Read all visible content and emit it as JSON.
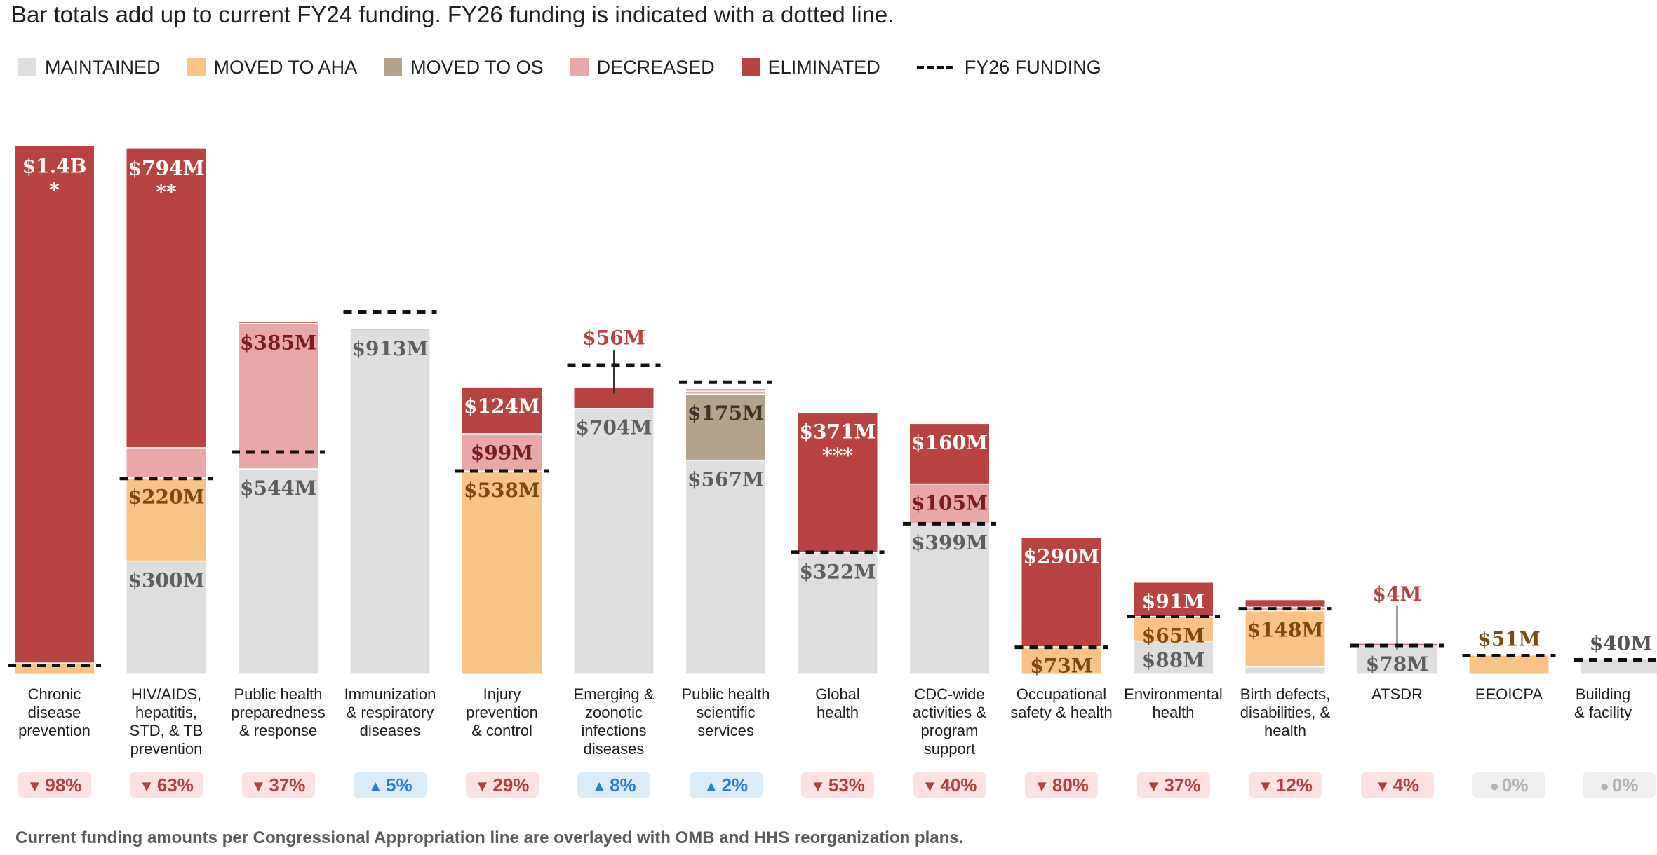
{
  "subtitle": "Bar totals add up to current FY24 funding. FY26 funding is indicated with a dotted line.",
  "footnote": "Current funding amounts per Congressional Appropriation line are overlayed with OMB and HHS reorganization plans.",
  "legend": [
    {
      "label": "MAINTAINED",
      "color": "#dedede"
    },
    {
      "label": "MOVED TO AHA",
      "color": "#f9c386"
    },
    {
      "label": "MOVED TO OS",
      "color": "#b3a389"
    },
    {
      "label": "DECREASED",
      "color": "#e9a8a8"
    },
    {
      "label": "ELIMINATED",
      "color": "#b84341"
    },
    {
      "label": "FY26 FUNDING",
      "style": "dashed"
    }
  ],
  "colors": {
    "MAINTAINED": "#dedede",
    "MOVED TO AHA": "#f9c386",
    "MOVED TO OS": "#b3a389",
    "DECREASED": "#e9a8a8",
    "ELIMINATED": "#b84341"
  },
  "chart_data": {
    "type": "bar",
    "stacked": true,
    "title": "Bar totals add up to current FY24 funding. FY26 funding is indicated with a dotted line.",
    "unit": "$M",
    "ylim": [
      0,
      1450
    ],
    "categories": [
      {
        "name": "Chronic disease prevention",
        "label_lines": [
          "Chronic",
          "disease",
          "prevention"
        ],
        "fy26": 25,
        "change": {
          "dir": "down",
          "text": "98%"
        },
        "top_label": {
          "text": "$1.4B",
          "note": "*",
          "color": "#ffffff",
          "inside": true
        },
        "segments": [
          {
            "type": "MOVED TO AHA",
            "value": 30
          },
          {
            "type": "ELIMINATED",
            "value": 1370
          }
        ]
      },
      {
        "name": "HIV/AIDS, hepatitis, STD, & TB prevention",
        "label_lines": [
          "HIV/AIDS,",
          "hepatitis,",
          "STD, & TB",
          "prevention"
        ],
        "fy26": 520,
        "change": {
          "dir": "down",
          "text": "63%"
        },
        "top_label": {
          "text": "$794M",
          "note": "**",
          "color": "#ffffff",
          "inside": true
        },
        "segments": [
          {
            "type": "MAINTAINED",
            "value": 300,
            "label": "$300M"
          },
          {
            "type": "MOVED TO AHA",
            "value": 220,
            "label": "$220M"
          },
          {
            "type": "DECREASED",
            "value": 80
          },
          {
            "type": "ELIMINATED",
            "value": 794
          }
        ]
      },
      {
        "name": "Public health preparedness & response",
        "label_lines": [
          "Public health",
          "preparedness",
          "& response"
        ],
        "fy26": 590,
        "change": {
          "dir": "down",
          "text": "37%"
        },
        "segments": [
          {
            "type": "MAINTAINED",
            "value": 544,
            "label": "$544M"
          },
          {
            "type": "DECREASED",
            "value": 385,
            "label": "$385M"
          },
          {
            "type": "ELIMINATED",
            "value": 6
          }
        ]
      },
      {
        "name": "Immunization & respiratory diseases",
        "label_lines": [
          "Immunization",
          "& respiratory",
          "diseases"
        ],
        "fy26": 960,
        "change": {
          "dir": "up",
          "text": "5%"
        },
        "segments": [
          {
            "type": "MAINTAINED",
            "value": 913,
            "label": "$913M"
          },
          {
            "type": "ELIMINATED",
            "value": 3
          }
        ]
      },
      {
        "name": "Injury prevention & control",
        "label_lines": [
          "Injury",
          "prevention",
          "& control"
        ],
        "fy26": 540,
        "change": {
          "dir": "down",
          "text": "29%"
        },
        "segments": [
          {
            "type": "MOVED TO AHA",
            "value": 538,
            "label": "$538M"
          },
          {
            "type": "DECREASED",
            "value": 99,
            "label": "$99M"
          },
          {
            "type": "ELIMINATED",
            "value": 124,
            "label": "$124M"
          }
        ]
      },
      {
        "name": "Emerging & zoonotic infections diseases",
        "label_lines": [
          "Emerging &",
          "zoonotic",
          "infections",
          "diseases"
        ],
        "fy26": 820,
        "change": {
          "dir": "up",
          "text": "8%"
        },
        "top_label": {
          "text": "$56M",
          "color": "#b84341",
          "inside": false,
          "leader": true
        },
        "segments": [
          {
            "type": "MAINTAINED",
            "value": 704,
            "label": "$704M"
          },
          {
            "type": "ELIMINATED",
            "value": 56
          }
        ]
      },
      {
        "name": "Public health scientific services",
        "label_lines": [
          "Public health",
          "scientific",
          "services"
        ],
        "fy26": 775,
        "change": {
          "dir": "up",
          "text": "2%"
        },
        "segments": [
          {
            "type": "MAINTAINED",
            "value": 567,
            "label": "$567M"
          },
          {
            "type": "MOVED TO OS",
            "value": 175,
            "label": "$175M"
          },
          {
            "type": "DECREASED",
            "value": 8
          },
          {
            "type": "ELIMINATED",
            "value": 6
          }
        ]
      },
      {
        "name": "Global health",
        "label_lines": [
          "Global",
          "health"
        ],
        "fy26": 325,
        "change": {
          "dir": "down",
          "text": "53%"
        },
        "segments": [
          {
            "type": "MAINTAINED",
            "value": 322,
            "label": "$322M"
          },
          {
            "type": "ELIMINATED",
            "value": 371,
            "label": "$371M",
            "note": "***"
          }
        ]
      },
      {
        "name": "CDC-wide activities & program support",
        "label_lines": [
          "CDC-wide",
          "activities &",
          "program",
          "support"
        ],
        "fy26": 400,
        "change": {
          "dir": "down",
          "text": "40%"
        },
        "segments": [
          {
            "type": "MAINTAINED",
            "value": 399,
            "label": "$399M"
          },
          {
            "type": "DECREASED",
            "value": 105,
            "label": "$105M"
          },
          {
            "type": "ELIMINATED",
            "value": 160,
            "label": "$160M"
          }
        ]
      },
      {
        "name": "Occupational safety & health",
        "label_lines": [
          "Occupational",
          "safety & health"
        ],
        "fy26": 73,
        "change": {
          "dir": "down",
          "text": "80%"
        },
        "segments": [
          {
            "type": "MOVED TO AHA",
            "value": 73,
            "label": "$73M"
          },
          {
            "type": "ELIMINATED",
            "value": 290,
            "label": "$290M"
          }
        ]
      },
      {
        "name": "Environmental health",
        "label_lines": [
          "Environmental",
          "health"
        ],
        "fy26": 155,
        "change": {
          "dir": "down",
          "text": "37%"
        },
        "segments": [
          {
            "type": "MAINTAINED",
            "value": 88,
            "label": "$88M"
          },
          {
            "type": "MOVED TO AHA",
            "value": 65,
            "label": "$65M"
          },
          {
            "type": "ELIMINATED",
            "value": 91,
            "label": "$91M"
          }
        ]
      },
      {
        "name": "Birth defects, disabilities, & health",
        "label_lines": [
          "Birth defects,",
          "disabilities, &",
          "health"
        ],
        "fy26": 175,
        "change": {
          "dir": "down",
          "text": "12%"
        },
        "segments": [
          {
            "type": "MAINTAINED",
            "value": 20
          },
          {
            "type": "MOVED TO AHA",
            "value": 148,
            "label": "$148M"
          },
          {
            "type": "DECREASED",
            "value": 10
          },
          {
            "type": "ELIMINATED",
            "value": 20
          }
        ]
      },
      {
        "name": "ATSDR",
        "label_lines": [
          "ATSDR"
        ],
        "fy26": 78,
        "change": {
          "dir": "down",
          "text": "4%"
        },
        "top_label": {
          "text": "$4M",
          "color": "#b84341",
          "inside": false,
          "leader": true
        },
        "segments": [
          {
            "type": "MAINTAINED",
            "value": 78,
            "label": "$78M"
          },
          {
            "type": "ELIMINATED",
            "value": 4
          }
        ]
      },
      {
        "name": "EEOICPA",
        "label_lines": [
          "EEOICPA"
        ],
        "fy26": 51,
        "change": {
          "dir": "flat",
          "text": "0%"
        },
        "top_label": {
          "text": "$51M",
          "color": "#7a4a10",
          "inside": false
        },
        "segments": [
          {
            "type": "MOVED TO AHA",
            "value": 51
          }
        ]
      },
      {
        "name": "Building & facility",
        "label_lines": [
          "Building",
          "& facility"
        ],
        "fy26": 40,
        "change": {
          "dir": "flat",
          "text": "0%"
        },
        "top_label": {
          "text": "$40M",
          "color": "#555555",
          "inside": false
        },
        "segments": [
          {
            "type": "MAINTAINED",
            "value": 40
          }
        ]
      }
    ]
  }
}
